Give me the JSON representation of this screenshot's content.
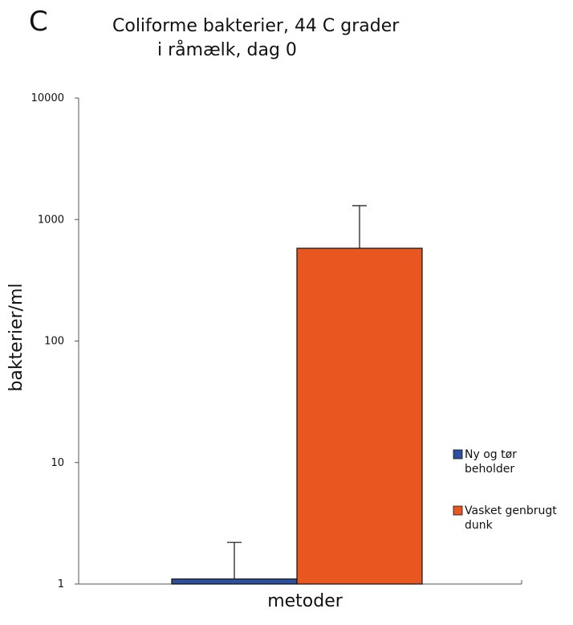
{
  "panel_letter": "C",
  "chart_data": {
    "type": "bar",
    "title_lines": [
      "Coliforme bakterier, 44 C grader",
      "i råmælk, dag 0"
    ],
    "xlabel": "metoder",
    "ylabel": "bakterier/ml",
    "y_scale": "log",
    "ylim": [
      1,
      10000
    ],
    "y_ticks": [
      1,
      10,
      100,
      1000,
      10000
    ],
    "y_tick_labels": [
      "1",
      "10",
      "100",
      "1000",
      "10000"
    ],
    "grid": false,
    "legend_position": "right",
    "series": [
      {
        "name_lines": [
          "Ny og tør",
          "beholder"
        ],
        "value": 1.1,
        "error_upper": 2.2,
        "color": "#2c4f9e"
      },
      {
        "name_lines": [
          "Vasket genbrugt",
          "dunk"
        ],
        "value": 580,
        "error_upper": 1300,
        "color": "#e8571f"
      }
    ]
  }
}
